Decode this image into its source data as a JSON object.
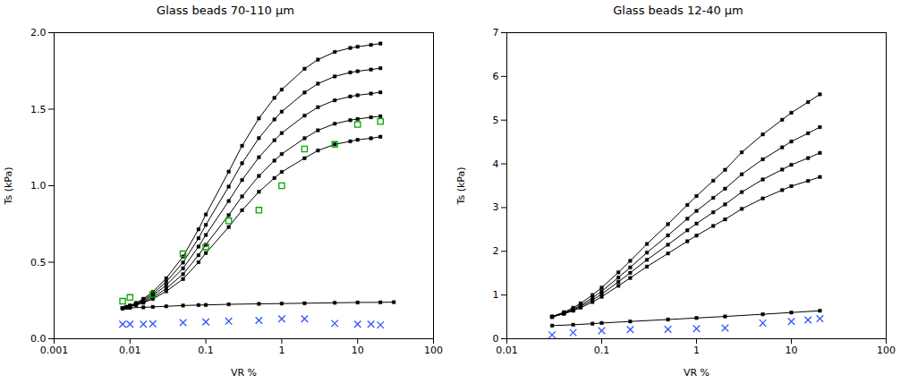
{
  "chart_data": [
    {
      "type": "line",
      "title": "Glass beads 70-110 μm",
      "x_label": "VR %",
      "y_label": "Ts (kPa)",
      "log": "x",
      "grid": false,
      "xlim": [
        0.001,
        100
      ],
      "xticks": [
        0.001,
        0.01,
        0.1,
        1,
        10,
        100
      ],
      "ylim": [
        0,
        2
      ],
      "yticks": [
        {
          "value": 0,
          "label": "0.0"
        },
        {
          "value": 0.5,
          "label": "0.5"
        },
        {
          "value": 1,
          "label": "1.0"
        },
        {
          "value": 1.5,
          "label": "1.5"
        },
        {
          "value": 2,
          "label": "2.0"
        }
      ],
      "series": [
        {
          "type": "line",
          "color": "#000000",
          "marker": "square",
          "line_style": "solid",
          "x": [
            0.008,
            0.009,
            0.01,
            0.012,
            0.015,
            0.02,
            0.03,
            0.05,
            0.08,
            0.1,
            0.2,
            0.3,
            0.5,
            0.8,
            1.0,
            2.0,
            3.0,
            5.0,
            8.0,
            10.0,
            15.0,
            20.0
          ],
          "values": [
            0.2,
            0.205,
            0.21,
            0.22,
            0.235,
            0.26,
            0.31,
            0.39,
            0.5,
            0.56,
            0.73,
            0.84,
            0.96,
            1.05,
            1.09,
            1.18,
            1.23,
            1.27,
            1.29,
            1.3,
            1.31,
            1.32
          ]
        },
        {
          "type": "line",
          "color": "#000000",
          "marker": "square",
          "line_style": "solid",
          "x": [
            0.008,
            0.009,
            0.01,
            0.012,
            0.015,
            0.02,
            0.03,
            0.05,
            0.08,
            0.1,
            0.2,
            0.3,
            0.5,
            0.8,
            1.0,
            2.0,
            3.0,
            5.0,
            8.0,
            10.0,
            15.0,
            20.0
          ],
          "values": [
            0.2,
            0.205,
            0.211,
            0.222,
            0.24,
            0.27,
            0.328,
            0.422,
            0.546,
            0.614,
            0.808,
            0.93,
            1.064,
            1.164,
            1.207,
            1.31,
            1.362,
            1.405,
            1.428,
            1.436,
            1.447,
            1.454
          ]
        },
        {
          "type": "line",
          "color": "#000000",
          "marker": "square",
          "line_style": "solid",
          "x": [
            0.008,
            0.009,
            0.01,
            0.012,
            0.015,
            0.02,
            0.03,
            0.05,
            0.08,
            0.1,
            0.2,
            0.3,
            0.5,
            0.8,
            1.0,
            2.0,
            3.0,
            5.0,
            8.0,
            10.0,
            15.0,
            20.0
          ],
          "values": [
            0.2,
            0.206,
            0.213,
            0.226,
            0.247,
            0.282,
            0.35,
            0.46,
            0.602,
            0.678,
            0.9,
            1.037,
            1.186,
            1.297,
            1.344,
            1.458,
            1.513,
            1.558,
            1.583,
            1.591,
            1.602,
            1.61
          ]
        },
        {
          "type": "line",
          "color": "#000000",
          "marker": "square",
          "line_style": "solid",
          "x": [
            0.008,
            0.009,
            0.01,
            0.012,
            0.015,
            0.02,
            0.03,
            0.05,
            0.08,
            0.1,
            0.2,
            0.3,
            0.5,
            0.8,
            1.0,
            2.0,
            3.0,
            5.0,
            8.0,
            10.0,
            15.0,
            20.0
          ],
          "values": [
            0.2,
            0.207,
            0.215,
            0.23,
            0.254,
            0.294,
            0.372,
            0.498,
            0.657,
            0.744,
            0.994,
            1.147,
            1.311,
            1.433,
            1.484,
            1.609,
            1.667,
            1.714,
            1.74,
            1.748,
            1.759,
            1.768
          ]
        },
        {
          "type": "line",
          "color": "#000000",
          "marker": "square",
          "line_style": "solid",
          "x": [
            0.008,
            0.009,
            0.01,
            0.012,
            0.015,
            0.02,
            0.03,
            0.05,
            0.08,
            0.1,
            0.2,
            0.3,
            0.5,
            0.8,
            1.0,
            2.0,
            3.0,
            5.0,
            8.0,
            10.0,
            15.0,
            20.0
          ],
          "values": [
            0.2,
            0.208,
            0.217,
            0.234,
            0.261,
            0.306,
            0.395,
            0.537,
            0.715,
            0.812,
            1.092,
            1.261,
            1.44,
            1.574,
            1.628,
            1.764,
            1.824,
            1.874,
            1.9,
            1.908,
            1.92,
            1.929
          ]
        },
        {
          "type": "line",
          "color": "#000000",
          "marker": "square",
          "line_style": "solid",
          "x": [
            0.008,
            0.01,
            0.015,
            0.02,
            0.03,
            0.05,
            0.08,
            0.1,
            0.2,
            0.5,
            1.0,
            2.0,
            5.0,
            10.0,
            20.0,
            30.0
          ],
          "values": [
            0.2,
            0.202,
            0.205,
            0.208,
            0.212,
            0.217,
            0.22,
            0.221,
            0.225,
            0.228,
            0.23,
            0.232,
            0.235,
            0.237,
            0.238,
            0.239
          ]
        },
        {
          "type": "scatter",
          "color": "#00aa00",
          "marker": "open_square",
          "x": [
            0.008,
            0.01,
            0.02,
            0.05,
            0.1,
            0.2,
            0.5,
            1.0,
            2.0,
            5.0,
            10.0,
            20.0
          ],
          "values": [
            0.245,
            0.27,
            0.29,
            0.555,
            0.6,
            0.77,
            0.84,
            1.0,
            1.24,
            1.27,
            1.4,
            1.42
          ]
        },
        {
          "type": "scatter",
          "color": "#3355ff",
          "marker": "x",
          "x": [
            0.008,
            0.01,
            0.015,
            0.02,
            0.05,
            0.1,
            0.2,
            0.5,
            1.0,
            2.0,
            5.0,
            10.0,
            15.0,
            20.0
          ],
          "values": [
            0.095,
            0.095,
            0.095,
            0.098,
            0.105,
            0.11,
            0.115,
            0.12,
            0.13,
            0.13,
            0.1,
            0.095,
            0.095,
            0.09
          ]
        }
      ]
    },
    {
      "type": "line",
      "title": "Glass beads 12-40 μm",
      "x_label": "VR %",
      "y_label": "Ts (kPa)",
      "log": "x",
      "grid": false,
      "xlim": [
        0.01,
        100
      ],
      "xticks": [
        0.01,
        0.1,
        1,
        10,
        100
      ],
      "ylim": [
        0,
        7
      ],
      "yticks": [
        0,
        1,
        2,
        3,
        4,
        5,
        6,
        7
      ],
      "series": [
        {
          "type": "line",
          "color": "#000000",
          "marker": "square",
          "line_style": "solid",
          "x": [
            0.03,
            0.04,
            0.05,
            0.06,
            0.08,
            0.1,
            0.15,
            0.2,
            0.3,
            0.5,
            0.8,
            1.0,
            1.5,
            2.0,
            3.0,
            5.0,
            8.0,
            10.0,
            15.0,
            20.0
          ],
          "values": [
            0.5,
            0.57,
            0.64,
            0.71,
            0.84,
            0.96,
            1.21,
            1.39,
            1.65,
            1.95,
            2.23,
            2.36,
            2.58,
            2.73,
            2.97,
            3.21,
            3.4,
            3.49,
            3.61,
            3.7
          ]
        },
        {
          "type": "line",
          "color": "#000000",
          "marker": "square",
          "line_style": "solid",
          "x": [
            0.03,
            0.04,
            0.05,
            0.06,
            0.08,
            0.1,
            0.15,
            0.2,
            0.3,
            0.5,
            0.8,
            1.0,
            1.5,
            2.0,
            3.0,
            5.0,
            8.0,
            10.0,
            15.0,
            20.0
          ],
          "values": [
            0.5,
            0.578,
            0.658,
            0.738,
            0.886,
            1.02,
            1.302,
            1.508,
            1.805,
            2.15,
            2.48,
            2.634,
            2.892,
            3.072,
            3.354,
            3.643,
            3.869,
            3.978,
            4.132,
            4.25
          ]
        },
        {
          "type": "line",
          "color": "#000000",
          "marker": "square",
          "line_style": "solid",
          "x": [
            0.03,
            0.04,
            0.05,
            0.06,
            0.08,
            0.1,
            0.15,
            0.2,
            0.3,
            0.5,
            0.8,
            1.0,
            1.5,
            2.0,
            3.0,
            5.0,
            8.0,
            10.0,
            15.0,
            20.0
          ],
          "values": [
            0.5,
            0.588,
            0.678,
            0.768,
            0.936,
            1.086,
            1.4,
            1.632,
            1.97,
            2.365,
            2.745,
            2.924,
            3.222,
            3.432,
            3.762,
            4.104,
            4.377,
            4.51,
            4.7,
            4.84
          ]
        },
        {
          "type": "line",
          "color": "#000000",
          "marker": "square",
          "line_style": "solid",
          "x": [
            0.03,
            0.04,
            0.05,
            0.06,
            0.08,
            0.1,
            0.15,
            0.2,
            0.3,
            0.5,
            0.8,
            1.0,
            1.5,
            2.0,
            3.0,
            5.0,
            8.0,
            10.0,
            15.0,
            20.0
          ],
          "values": [
            0.51,
            0.608,
            0.708,
            0.81,
            1.0,
            1.168,
            1.518,
            1.782,
            2.168,
            2.62,
            3.06,
            3.264,
            3.614,
            3.864,
            4.264,
            4.674,
            5.008,
            5.168,
            5.412,
            5.59
          ]
        },
        {
          "type": "line",
          "color": "#000000",
          "marker": "square",
          "line_style": "solid",
          "x": [
            0.03,
            0.05,
            0.08,
            0.1,
            0.2,
            0.5,
            1.0,
            2.0,
            5.0,
            10.0,
            20.0
          ],
          "values": [
            0.3,
            0.32,
            0.345,
            0.36,
            0.395,
            0.44,
            0.475,
            0.51,
            0.56,
            0.6,
            0.64
          ]
        },
        {
          "type": "scatter",
          "color": "#3355ff",
          "marker": "x",
          "x": [
            0.03,
            0.05,
            0.1,
            0.2,
            0.5,
            1.0,
            2.0,
            5.0,
            10.0,
            15.0,
            20.0
          ],
          "values": [
            0.09,
            0.14,
            0.185,
            0.21,
            0.215,
            0.23,
            0.245,
            0.36,
            0.395,
            0.43,
            0.46
          ]
        }
      ]
    }
  ]
}
